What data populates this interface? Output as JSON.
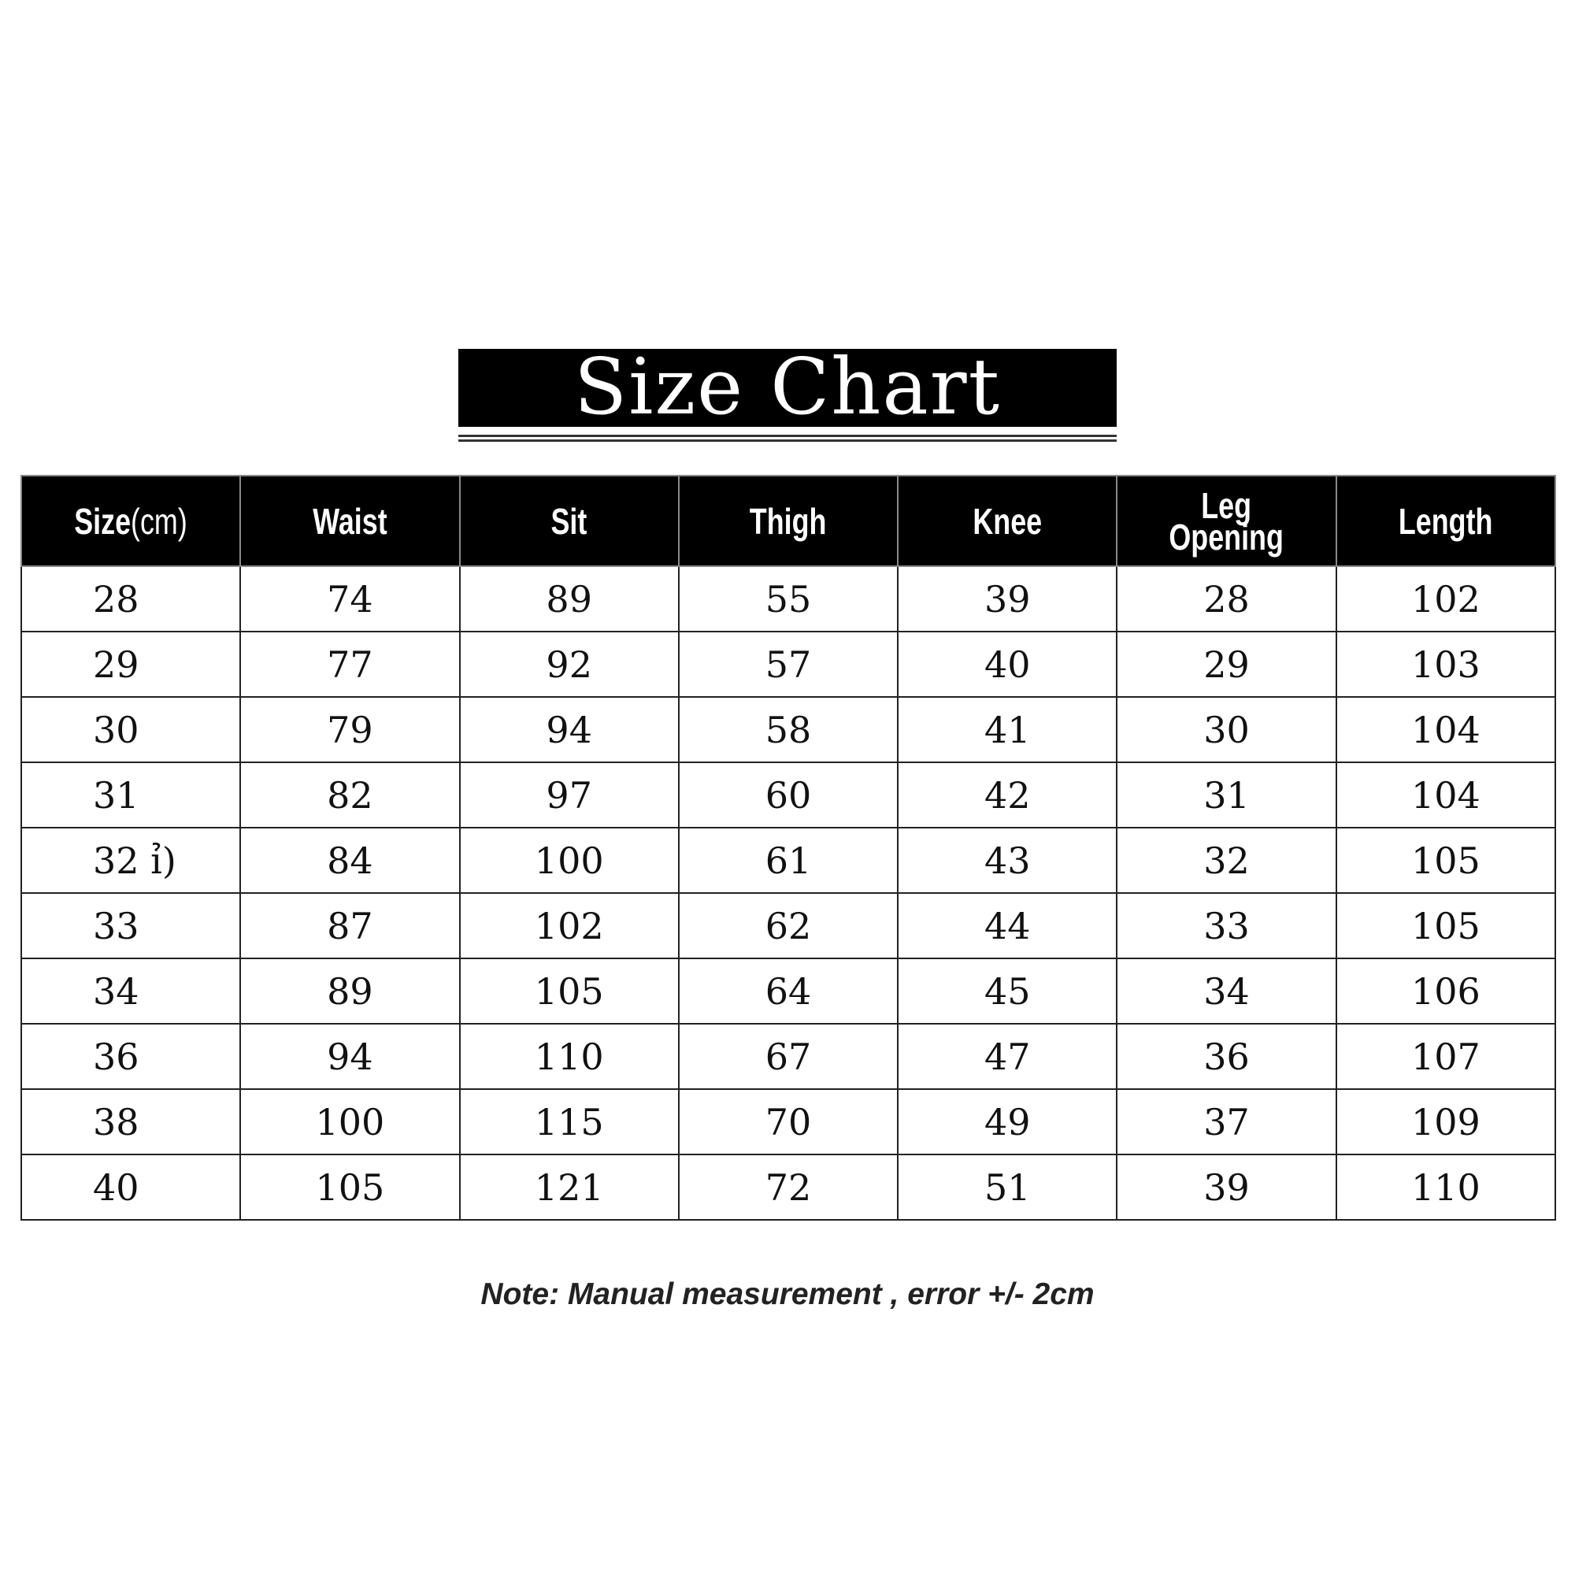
{
  "title": "Size Chart",
  "table": {
    "headers": [
      {
        "label": "Size",
        "unit": "(cm)"
      },
      {
        "label": "Waist"
      },
      {
        "label": "Sit"
      },
      {
        "label": "Thigh"
      },
      {
        "label": "Knee"
      },
      {
        "label": "Leg Opening"
      },
      {
        "label": "Length"
      }
    ],
    "rows": [
      [
        "28",
        "74",
        "89",
        "55",
        "39",
        "28",
        "102"
      ],
      [
        "29",
        "77",
        "92",
        "57",
        "40",
        "29",
        "103"
      ],
      [
        "30",
        "79",
        "94",
        "58",
        "41",
        "30",
        "104"
      ],
      [
        "31",
        "82",
        "97",
        "60",
        "42",
        "31",
        "104"
      ],
      [
        "32 ỉ)",
        "84",
        "100",
        "61",
        "43",
        "32",
        "105"
      ],
      [
        "33",
        "87",
        "102",
        "62",
        "44",
        "33",
        "105"
      ],
      [
        "34",
        "89",
        "105",
        "64",
        "45",
        "34",
        "106"
      ],
      [
        "36",
        "94",
        "110",
        "67",
        "47",
        "36",
        "107"
      ],
      [
        "38",
        "100",
        "115",
        "70",
        "49",
        "37",
        "109"
      ],
      [
        "40",
        "105",
        "121",
        "72",
        "51",
        "39",
        "110"
      ]
    ]
  },
  "note": "Note: Manual measurement , error +/- 2cm"
}
